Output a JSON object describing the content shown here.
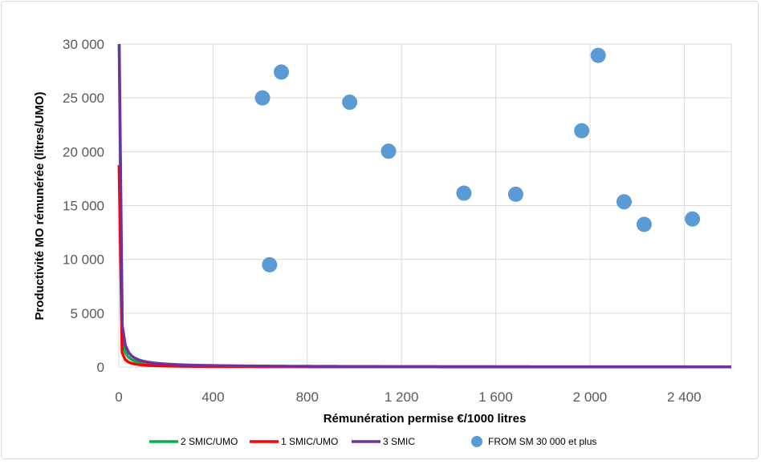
{
  "chart_data": {
    "type": "scatter",
    "title": "",
    "xlabel": "Rémunération permise €/1000 litres",
    "ylabel": "Productivité MO rémunérée (litres/UMO)",
    "xlim": [
      0,
      2600
    ],
    "ylim": [
      0,
      30000
    ],
    "x_ticks": [
      0,
      400,
      800,
      1200,
      1600,
      2000,
      2400
    ],
    "x_tick_labels": [
      "0",
      "400",
      "800",
      "1 200",
      "1 600",
      "2 000",
      "2 400"
    ],
    "y_ticks": [
      0,
      5000,
      10000,
      15000,
      20000,
      25000,
      30000
    ],
    "y_tick_labels": [
      "0",
      "5 000",
      "10 000",
      "15 000",
      "20 000",
      "25 000",
      "30 000"
    ],
    "grid": true,
    "legend_position": "bottom",
    "series": [
      {
        "name": "2 SMIC/UMO",
        "type": "line",
        "color": "#00b050",
        "k": 37500
      },
      {
        "name": "1 SMIC/UMO",
        "type": "line",
        "color": "#ff0000",
        "k": 18750
      },
      {
        "name": "3 SMIC",
        "type": "line",
        "color": "#7030a0",
        "k": 56600
      },
      {
        "name": "FROM SM 30 000 et plus",
        "type": "scatter",
        "color": "#5b9bd5",
        "points": [
          [
            610,
            25000
          ],
          [
            640,
            9500
          ],
          [
            690,
            27400
          ],
          [
            980,
            24600
          ],
          [
            1145,
            20050
          ],
          [
            1465,
            16150
          ],
          [
            1685,
            16050
          ],
          [
            1965,
            21950
          ],
          [
            2035,
            28950
          ],
          [
            2145,
            15350
          ],
          [
            2230,
            13250
          ],
          [
            2435,
            13750
          ]
        ]
      }
    ]
  }
}
